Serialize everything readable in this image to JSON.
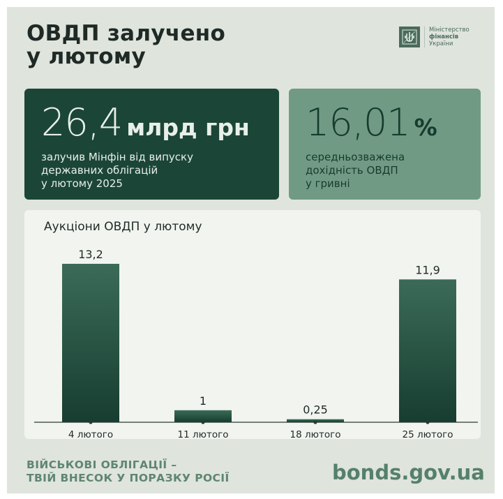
{
  "header": {
    "title": "ОВДП залучено\nу лютому",
    "logo_icon": "trident-icon",
    "logo_lines": [
      "Міністерство",
      "фінансів",
      "України"
    ]
  },
  "cards": {
    "raised": {
      "value": "26,4",
      "unit": "млрд грн",
      "description": "залучив Мінфін від випуску\nдержавних облігацій\nу лютому 2025"
    },
    "yield": {
      "value": "16,01",
      "unit": "%",
      "description": "середньозважена\nдохідність ОВДП\nу гривні"
    }
  },
  "chart_data": {
    "type": "bar",
    "title": "Аукціони ОВДП у лютому",
    "categories": [
      "4 лютого",
      "11 лютого",
      "18 лютого",
      "25 лютого"
    ],
    "values": [
      13.2,
      1,
      0.25,
      11.9
    ],
    "value_labels": [
      "13,2",
      "1",
      "0,25",
      "11,9"
    ],
    "ylim": [
      0,
      13.2
    ],
    "grid": false,
    "colors": {
      "bar_top": "#3b6b58",
      "bar_bottom": "#173d30"
    }
  },
  "footer": {
    "slogan": "ВІЙСЬКОВІ ОБЛІГАЦІЇ –\nТВІЙ ВНЕСОК У ПОРАЗКУ РОСІЇ",
    "site": "bonds.gov.ua"
  },
  "colors": {
    "background": "#dfe4dd",
    "dark_card": "#1b4637",
    "light_card": "#719a84",
    "accent": "#5f866f"
  }
}
